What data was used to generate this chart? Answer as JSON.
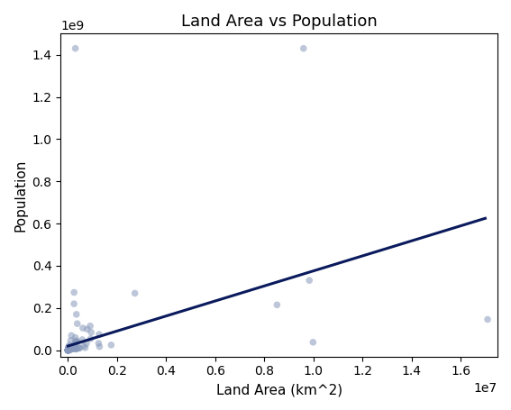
{
  "title": "Land Area vs Population",
  "xlabel": "Land Area (km^2)",
  "ylabel": "Population",
  "scatter_color": "#8899BB",
  "scatter_alpha": 0.55,
  "scatter_size": 30,
  "line_color": "#0a1a5c",
  "line_width": 2.2,
  "xlim": [
    -300000,
    17500000
  ],
  "ylim": [
    -30000000.0,
    1500000000.0
  ],
  "line_x0": 0,
  "line_x1": 17000000,
  "line_y0": 20000000,
  "line_y1": 625000000,
  "points": [
    [
      300000,
      1430000000
    ],
    [
      9596960,
      1430000000
    ],
    [
      9984670,
      38000000
    ],
    [
      17098242,
      146000000
    ],
    [
      9833517,
      331000000
    ],
    [
      8515767,
      215000000
    ],
    [
      2724900,
      270000000
    ],
    [
      923768,
      55000000
    ],
    [
      1284000,
      17000000
    ],
    [
      1759540,
      25000000
    ],
    [
      1246700,
      33000000
    ],
    [
      1267000,
      75000000
    ],
    [
      905354,
      115000000
    ],
    [
      945087,
      85000000
    ],
    [
      752618,
      32000000
    ],
    [
      780580,
      100000000
    ],
    [
      699451,
      12000000
    ],
    [
      638395,
      20000000
    ],
    [
      603550,
      105000000
    ],
    [
      582650,
      50000000
    ],
    [
      475440,
      10000000
    ],
    [
      447400,
      10000000
    ],
    [
      406752,
      12000000
    ],
    [
      385208,
      41000000
    ],
    [
      377930,
      126000000
    ],
    [
      342000,
      170000000
    ],
    [
      338424,
      5500000
    ],
    [
      329560,
      7000000
    ],
    [
      323802,
      38000000
    ],
    [
      313896,
      45000000
    ],
    [
      312696,
      38000000
    ],
    [
      303890,
      6000000
    ],
    [
      301340,
      60000000
    ],
    [
      270467,
      19000000
    ],
    [
      267667,
      18000000
    ],
    [
      248460,
      274000000
    ],
    [
      245857,
      220000000
    ],
    [
      238533,
      18000000
    ],
    [
      236800,
      7000000
    ],
    [
      227657,
      12000000
    ],
    [
      196722,
      11000000
    ],
    [
      185180,
      15000000
    ],
    [
      181035,
      19000000
    ],
    [
      176215,
      17000000
    ],
    [
      163820,
      7000000
    ],
    [
      147181,
      10000000
    ],
    [
      143100,
      8000000
    ],
    [
      141510,
      70000000
    ],
    [
      130558,
      5000000
    ],
    [
      120538,
      10000000
    ],
    [
      118480,
      6000000
    ],
    [
      113810,
      12000000
    ],
    [
      112622,
      7000000
    ],
    [
      111369,
      46000000
    ],
    [
      103000,
      7000000
    ],
    [
      99900,
      3000000
    ],
    [
      94000,
      9000000
    ],
    [
      92090,
      10000000
    ],
    [
      88361,
      5000000
    ],
    [
      83871,
      9000000
    ],
    [
      83600,
      12000000
    ],
    [
      77483,
      5000000
    ],
    [
      75417,
      4000000
    ],
    [
      72300,
      6000000
    ],
    [
      71740,
      5000000
    ],
    [
      70273,
      6000000
    ],
    [
      68000,
      7000000
    ],
    [
      67340,
      2000000
    ],
    [
      65610,
      5000000
    ],
    [
      63251,
      25000000
    ],
    [
      56785,
      11000000
    ],
    [
      51209,
      8000000
    ],
    [
      47710,
      5000000
    ],
    [
      45227,
      11000000
    ],
    [
      43094,
      10000000
    ],
    [
      41543,
      5000000
    ],
    [
      41290,
      3500000
    ],
    [
      36193,
      3000000
    ],
    [
      35980,
      7000000
    ],
    [
      35516,
      3000000
    ],
    [
      33846,
      7000000
    ],
    [
      30355,
      2000000
    ],
    [
      28051,
      17000000
    ],
    [
      27750,
      1500000
    ],
    [
      26338,
      5000000
    ],
    [
      25713,
      6000000
    ],
    [
      24468,
      1500000
    ],
    [
      23200,
      900000
    ],
    [
      22966,
      3000000
    ],
    [
      20273,
      8000000
    ],
    [
      17818,
      1000000
    ],
    [
      17363,
      500000
    ],
    [
      15007,
      2000000
    ],
    [
      14763,
      600000
    ],
    [
      13812,
      2000000
    ],
    [
      13130,
      1000000
    ],
    [
      12189,
      700000
    ],
    [
      11586,
      500000
    ],
    [
      11000,
      300000
    ],
    [
      10452,
      11000000
    ],
    [
      9251,
      400000
    ],
    [
      7741,
      500000
    ],
    [
      6220,
      500000
    ],
    [
      5765,
      200000
    ],
    [
      5130,
      400000
    ],
    [
      4033,
      1300000
    ],
    [
      2944,
      400000
    ],
    [
      2586,
      600000
    ],
    [
      2040,
      400000
    ],
    [
      1861,
      100000
    ],
    [
      1030,
      200000
    ],
    [
      778,
      1000000
    ],
    [
      702,
      100000
    ],
    [
      468,
      800000
    ],
    [
      453,
      1000000
    ],
    [
      316,
      400000
    ],
    [
      298,
      200000
    ],
    [
      269,
      100000
    ],
    [
      160,
      100000
    ],
    [
      61,
      200000
    ],
    [
      53,
      100000
    ],
    [
      30,
      30000
    ],
    [
      21,
      10000
    ],
    [
      2,
      800
    ]
  ]
}
